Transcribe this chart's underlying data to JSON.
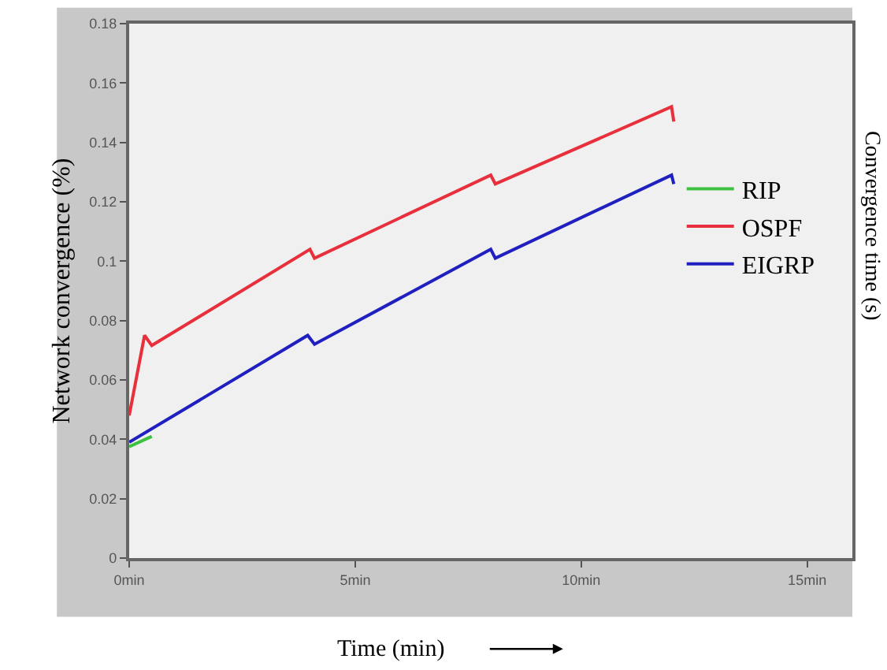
{
  "chart_data": {
    "type": "line",
    "xlabel": "Time (min)",
    "ylabel": "Network convergence (%)",
    "y2label": "Convergence time (s)",
    "xlim": [
      0,
      16
    ],
    "xticks": [
      {
        "value": 0,
        "label": "0min"
      },
      {
        "value": 5,
        "label": "5min"
      },
      {
        "value": 10,
        "label": "10min"
      },
      {
        "value": 15,
        "label": "15min"
      }
    ],
    "ylim": [
      0,
      0.18
    ],
    "yticks": [
      0,
      0.02,
      0.04,
      0.06,
      0.08,
      0.1,
      0.12,
      0.14,
      0.16,
      0.18
    ],
    "grid": false,
    "legend": "right",
    "marker": "none",
    "line_style": "solid",
    "series": [
      {
        "name": "RIP",
        "color": "#40c040",
        "x": [
          0,
          0.5
        ],
        "values": [
          0.0375,
          0.041
        ]
      },
      {
        "name": "OSPF",
        "color": "#e8303c",
        "x": [
          0,
          0.34,
          0.5,
          4,
          4.1,
          8,
          8.1,
          12,
          12.05
        ],
        "values": [
          0.048,
          0.075,
          0.0716,
          0.104,
          0.101,
          0.129,
          0.126,
          0.152,
          0.147
        ]
      },
      {
        "name": "EIGRP",
        "color": "#2020c0",
        "x": [
          0,
          3.95,
          4.1,
          8,
          8.1,
          12,
          12.05
        ],
        "values": [
          0.039,
          0.075,
          0.072,
          0.104,
          0.101,
          0.129,
          0.126
        ]
      }
    ]
  }
}
